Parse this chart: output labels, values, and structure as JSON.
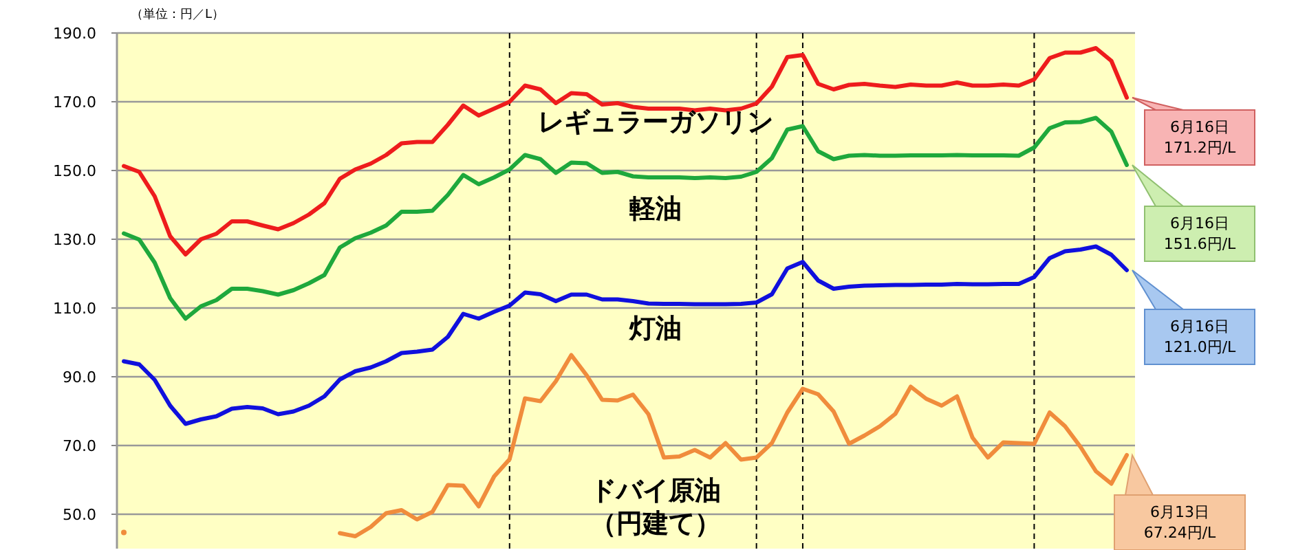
{
  "chart_data": {
    "type": "line",
    "ylabel": "（単位：円／L）",
    "categories": [
      null,
      null,
      null,
      null,
      null,
      null,
      null,
      null,
      null,
      null,
      null,
      null,
      null,
      null,
      null,
      null,
      null,
      null,
      null,
      null,
      null,
      null,
      null,
      null,
      null,
      null,
      null,
      null,
      null,
      null,
      null,
      null,
      null,
      null,
      null,
      null,
      null,
      null,
      null,
      null,
      null,
      null,
      null,
      null,
      null,
      null,
      null,
      null,
      null,
      null,
      null,
      null,
      null,
      null,
      null,
      null,
      null,
      null,
      null,
      null,
      null,
      null,
      null,
      null,
      null,
      null
    ],
    "series": [
      {
        "name": "レギュラーガソリン",
        "color": "#ee1c1c",
        "values": [
          151.3,
          149.6,
          142.5,
          130.9,
          125.6,
          130,
          131.6,
          135.2,
          135.2,
          134,
          132.9,
          134.7,
          137.2,
          140.5,
          147.6,
          150.3,
          152,
          154.5,
          157.9,
          158.3,
          158.3,
          163.3,
          168.9,
          166,
          168,
          170,
          174.7,
          173.6,
          169.6,
          172.5,
          172.2,
          169.2,
          169.6,
          168.5,
          168,
          168,
          168,
          167.5,
          168,
          167.5,
          168,
          169.5,
          174.4,
          183,
          183.6,
          175.2,
          173.6,
          174.9,
          175.2,
          174.7,
          174.3,
          175,
          174.7,
          174.7,
          175.6,
          174.7,
          174.7,
          175,
          174.7,
          176.5,
          182.7,
          184.3,
          184.3,
          185.6,
          181.9,
          171.2
        ]
      },
      {
        "name": "軽油",
        "color": "#1ea83c",
        "values": [
          131.7,
          129.9,
          123.2,
          112.9,
          106.9,
          110.5,
          112.3,
          115.6,
          115.6,
          114.9,
          113.9,
          115.2,
          117.2,
          119.6,
          127.6,
          130.3,
          131.9,
          134,
          138,
          138,
          138.3,
          142.9,
          148.7,
          146,
          148,
          150.3,
          154.5,
          153.3,
          149.3,
          152.3,
          152.1,
          149.3,
          149.6,
          148.3,
          148,
          148,
          148,
          147.8,
          148,
          147.8,
          148.2,
          149.6,
          153.6,
          161.9,
          162.9,
          155.6,
          153.3,
          154.3,
          154.5,
          154.3,
          154.3,
          154.4,
          154.4,
          154.4,
          154.5,
          154.4,
          154.4,
          154.4,
          154.3,
          156.7,
          162.3,
          164,
          164.1,
          165.3,
          161.3,
          151.6
        ]
      },
      {
        "name": "灯油",
        "color": "#1010dd",
        "values": [
          94.5,
          93.6,
          89.1,
          81.6,
          76.3,
          77.6,
          78.5,
          80.7,
          81.2,
          80.8,
          79.1,
          79.9,
          81.6,
          84.3,
          89.2,
          91.6,
          92.7,
          94.5,
          96.9,
          97.3,
          97.9,
          101.6,
          108.3,
          106.9,
          108.9,
          110.7,
          114.5,
          114,
          112,
          113.9,
          113.9,
          112.5,
          112.5,
          112,
          111.3,
          111.2,
          111.2,
          111.1,
          111.1,
          111.1,
          111.2,
          111.6,
          114,
          121.5,
          123.4,
          118,
          115.6,
          116.2,
          116.5,
          116.6,
          116.7,
          116.7,
          116.8,
          116.8,
          117,
          116.9,
          116.9,
          117,
          117,
          119,
          124.5,
          126.5,
          127,
          127.9,
          125.5,
          121
        ]
      },
      {
        "name": "ドバイ原油（円建て）",
        "color": "#f08c3c",
        "values": [
          44.7,
          null,
          null,
          null,
          null,
          null,
          null,
          null,
          null,
          null,
          null,
          null,
          null,
          null,
          44.5,
          43.6,
          46.3,
          50.3,
          51.2,
          48.5,
          50.7,
          58.5,
          58.3,
          52.3,
          61,
          66,
          83.7,
          82.9,
          88.7,
          96.3,
          90.4,
          83.3,
          83.1,
          84.8,
          79.1,
          66.5,
          66.8,
          68.7,
          66.5,
          70.7,
          65.9,
          66.5,
          70.7,
          79.6,
          86.5,
          84.9,
          79.9,
          70.5,
          72.9,
          75.6,
          79.2,
          87.1,
          83.6,
          81.6,
          84.3,
          72.3,
          66.5,
          70.9,
          70.7,
          70.5,
          79.6,
          75.6,
          69.6,
          62.5,
          58.9,
          67.2
        ]
      }
    ],
    "ylim": [
      40,
      190
    ],
    "yticks": [
      {
        "value": 50,
        "label": "50.0"
      },
      {
        "value": 70,
        "label": "70.0"
      },
      {
        "value": 90,
        "label": "90.0"
      },
      {
        "value": 110,
        "label": "110.0"
      },
      {
        "value": 130,
        "label": "130.0"
      },
      {
        "value": 150,
        "label": "150.0"
      },
      {
        "value": 170,
        "label": "170.0"
      },
      {
        "value": 190,
        "label": "190.0"
      }
    ],
    "grid": true,
    "legend": false,
    "marker": "none",
    "line_style": "solid",
    "annotations": [
      "6月16日\n171.2円/L",
      "6月16日\n151.6円/L",
      "6月16日\n121.0円/L",
      "6月13日\n67.24円/L"
    ]
  }
}
